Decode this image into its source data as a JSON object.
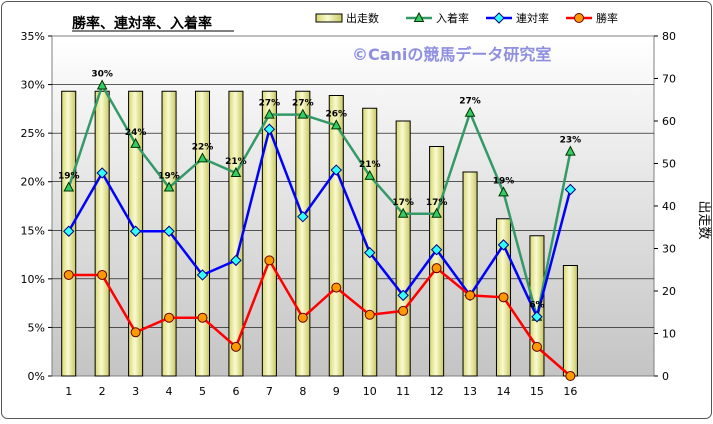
{
  "chart_data": {
    "type": "bar+line",
    "title": "勝率、連対率、入着率",
    "watermark": "©Caniの競馬データ研究室",
    "categories": [
      "1",
      "2",
      "3",
      "4",
      "5",
      "6",
      "7",
      "8",
      "9",
      "10",
      "11",
      "12",
      "13",
      "14",
      "15",
      "16"
    ],
    "bar_series": {
      "name": "出走数",
      "values": [
        67,
        67,
        67,
        67,
        67,
        67,
        67,
        67,
        66,
        63,
        60,
        54,
        48,
        37,
        33,
        26
      ],
      "color": "#f2f2a0",
      "axis": "right"
    },
    "line_series": [
      {
        "name": "入着率",
        "color": "#339966",
        "marker": "triangle",
        "values": [
          19.4,
          29.9,
          23.9,
          19.4,
          22.4,
          20.9,
          26.9,
          26.9,
          25.8,
          20.6,
          16.7,
          16.7,
          27.1,
          18.9,
          6.1,
          23.1
        ],
        "labels": [
          "19%",
          "30%",
          "24%",
          "19%",
          "22%",
          "21%",
          "27%",
          "27%",
          "26%",
          "21%",
          "17%",
          "17%",
          "27%",
          "19%",
          "6%",
          "23%"
        ]
      },
      {
        "name": "連対率",
        "color": "#0000ff",
        "marker": "diamond",
        "values": [
          14.9,
          20.9,
          14.9,
          14.9,
          10.4,
          11.9,
          25.4,
          16.4,
          21.2,
          12.7,
          8.3,
          13.0,
          8.3,
          13.5,
          6.1,
          19.2
        ]
      },
      {
        "name": "勝率",
        "color": "#ff0000",
        "marker": "circle",
        "values": [
          10.4,
          10.4,
          4.5,
          6.0,
          6.0,
          3.0,
          11.9,
          6.0,
          9.1,
          6.3,
          6.7,
          11.1,
          8.3,
          8.1,
          3.0,
          0.0
        ]
      }
    ],
    "y_left": {
      "min": 0,
      "max": 35,
      "step": 5,
      "ticks": [
        "0%",
        "5%",
        "10%",
        "15%",
        "20%",
        "25%",
        "30%",
        "35%"
      ]
    },
    "y_right": {
      "min": 0,
      "max": 80,
      "step": 10,
      "label": "出走数",
      "ticks": [
        "0",
        "10",
        "20",
        "30",
        "40",
        "50",
        "60",
        "70",
        "80"
      ]
    },
    "legend": {
      "position": "top-right",
      "items": [
        {
          "name": "出走数",
          "marker": "bar"
        },
        {
          "name": "入着率",
          "marker": "triangle"
        },
        {
          "name": "連対率",
          "marker": "diamond"
        },
        {
          "name": "勝率",
          "marker": "circle"
        }
      ]
    },
    "grid": true,
    "plot_background": [
      "#ffffff",
      "#c8c8c8"
    ]
  }
}
